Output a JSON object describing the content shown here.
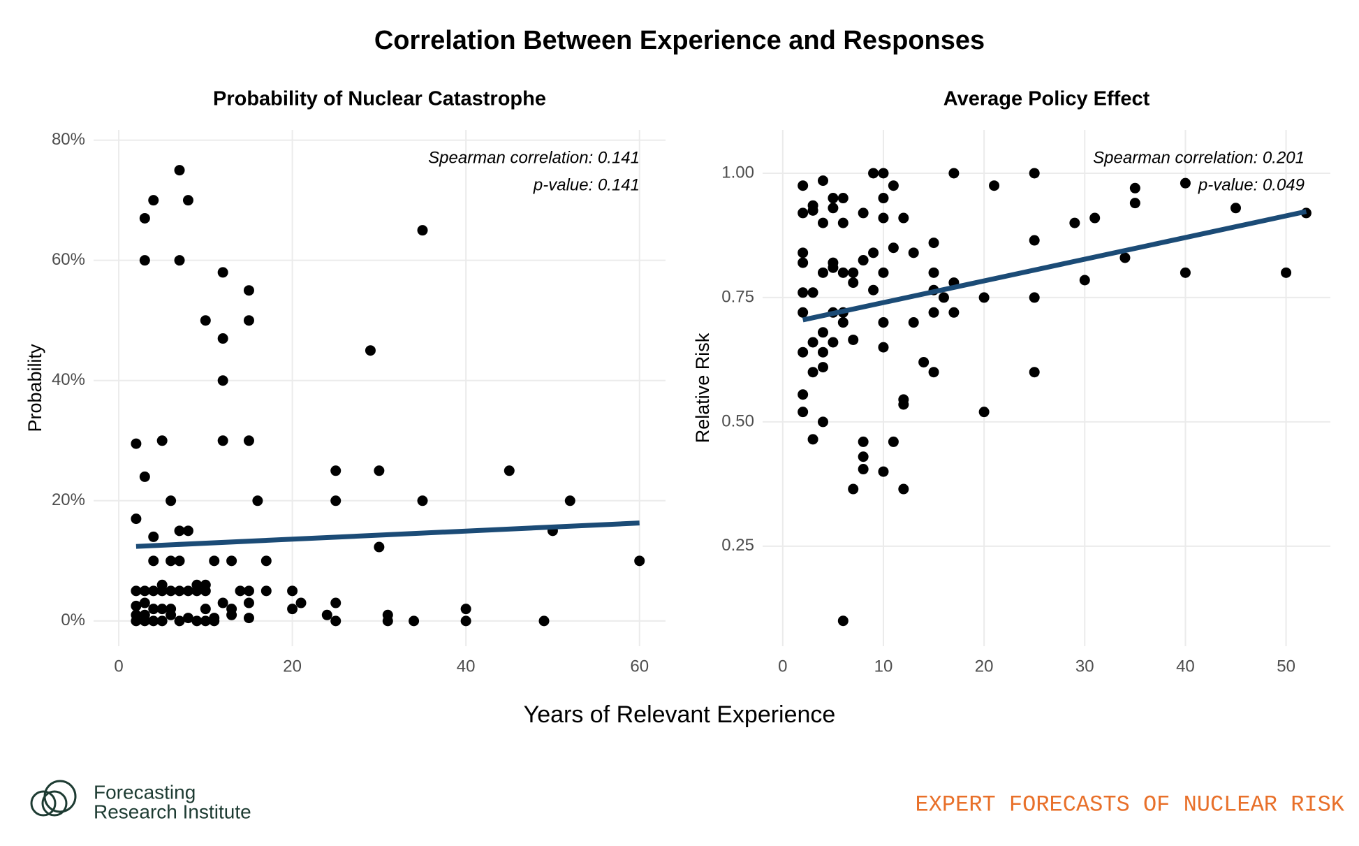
{
  "title": "Correlation Between Experience and Responses",
  "x_label": "Years of Relevant Experience",
  "logo_text": [
    "Forecasting",
    "Research Institute"
  ],
  "footer": "EXPERT FORECASTS OF NUCLEAR RISK",
  "chart_data": [
    {
      "type": "scatter",
      "title": "Probability of Nuclear Catastrophe",
      "y_label": "Probability",
      "color": "#000000",
      "grid": true,
      "xlim": [
        -2.9,
        63
      ],
      "ylim": [
        -4.2,
        81.7
      ],
      "xticks": [
        0,
        20,
        40,
        60
      ],
      "yticks": [
        {
          "value": 0,
          "label": "0%"
        },
        {
          "value": 20,
          "label": "20%"
        },
        {
          "value": 40,
          "label": "40%"
        },
        {
          "value": 60,
          "label": "60%"
        },
        {
          "value": 80,
          "label": "80%"
        }
      ],
      "annotations": [
        "Spearman correlation: 0.141",
        "p-value: 0.141"
      ],
      "trend_line": {
        "color": "#1b4b76",
        "x": [
          2,
          60
        ],
        "y": [
          12.4,
          16.3
        ]
      },
      "x": [
        2,
        2,
        2,
        2,
        2,
        2,
        3,
        3,
        3,
        3,
        3,
        3,
        3,
        4,
        4,
        4,
        4,
        4,
        4,
        5,
        5,
        5,
        5,
        5,
        6,
        6,
        6,
        6,
        6,
        7,
        7,
        7,
        7,
        7,
        7,
        8,
        8,
        8,
        8,
        9,
        9,
        9,
        10,
        10,
        10,
        10,
        10,
        11,
        11,
        11,
        12,
        12,
        12,
        12,
        12,
        13,
        13,
        13,
        14,
        15,
        15,
        15,
        15,
        15,
        15,
        16,
        17,
        17,
        20,
        20,
        21,
        24,
        25,
        25,
        25,
        25,
        29,
        30,
        30,
        31,
        31,
        34,
        35,
        35,
        40,
        40,
        45,
        49,
        50,
        52,
        60
      ],
      "y": [
        29.5,
        17,
        5,
        2.5,
        1,
        0,
        67,
        60,
        24,
        5,
        3,
        1,
        0,
        70,
        14,
        10,
        5,
        2,
        0,
        30,
        6,
        5,
        2,
        0,
        20,
        10,
        5,
        2,
        1,
        75,
        60,
        15,
        10,
        5,
        0,
        70,
        15,
        5,
        0.5,
        6,
        5,
        0,
        50,
        6,
        5,
        2,
        0,
        10,
        0.5,
        0,
        58,
        47,
        40,
        30,
        3,
        10,
        2,
        1,
        5,
        55,
        50,
        30,
        5,
        3,
        0.5,
        20,
        10,
        5,
        5,
        2,
        3,
        1,
        25,
        20,
        3,
        0,
        45,
        25,
        12.3,
        1,
        0,
        0,
        65,
        20,
        2,
        0,
        25,
        0,
        15,
        20,
        10
      ]
    },
    {
      "type": "scatter",
      "title": "Average Policy Effect",
      "y_label": "Relative Risk",
      "color": "#000000",
      "grid": true,
      "xlim": [
        -2,
        54.4
      ],
      "ylim": [
        0.049,
        1.087
      ],
      "xticks": [
        0,
        10,
        20,
        30,
        40,
        50
      ],
      "yticks": [
        {
          "value": 0.25,
          "label": "0.25"
        },
        {
          "value": 0.5,
          "label": "0.50"
        },
        {
          "value": 0.75,
          "label": "0.75"
        },
        {
          "value": 1.0,
          "label": "1.00"
        }
      ],
      "annotations": [
        "Spearman correlation: 0.201",
        "p-value: 0.049"
      ],
      "trend_line": {
        "color": "#1b4b76",
        "x": [
          2,
          52
        ],
        "y": [
          0.705,
          0.923
        ]
      },
      "x": [
        2,
        2,
        2,
        2,
        2,
        2,
        2,
        2,
        2,
        3,
        3,
        3,
        3,
        3,
        3,
        4,
        4,
        4,
        4,
        4,
        4,
        4,
        5,
        5,
        5,
        5,
        5,
        5,
        6,
        6,
        6,
        6,
        6,
        6,
        7,
        7,
        7,
        7,
        8,
        8,
        8,
        8,
        8,
        9,
        9,
        9,
        10,
        10,
        10,
        10,
        10,
        10,
        10,
        11,
        11,
        11,
        12,
        12,
        12,
        12,
        13,
        13,
        14,
        15,
        15,
        15,
        15,
        15,
        16,
        17,
        17,
        17,
        20,
        20,
        21,
        25,
        25,
        25,
        25,
        29,
        30,
        31,
        34,
        35,
        35,
        40,
        40,
        45,
        50,
        52
      ],
      "y": [
        0.975,
        0.92,
        0.84,
        0.82,
        0.76,
        0.72,
        0.64,
        0.555,
        0.52,
        0.935,
        0.925,
        0.76,
        0.66,
        0.6,
        0.465,
        0.985,
        0.9,
        0.8,
        0.68,
        0.64,
        0.61,
        0.5,
        0.95,
        0.93,
        0.82,
        0.81,
        0.72,
        0.66,
        0.95,
        0.9,
        0.8,
        0.72,
        0.7,
        0.1,
        0.8,
        0.78,
        0.665,
        0.365,
        0.92,
        0.825,
        0.46,
        0.43,
        0.405,
        1.0,
        0.84,
        0.765,
        1.0,
        0.95,
        0.91,
        0.8,
        0.7,
        0.65,
        0.4,
        0.975,
        0.85,
        0.46,
        0.91,
        0.545,
        0.535,
        0.365,
        0.84,
        0.7,
        0.62,
        0.86,
        0.8,
        0.765,
        0.72,
        0.6,
        0.75,
        1.0,
        0.78,
        0.72,
        0.75,
        0.52,
        0.975,
        1.0,
        0.865,
        0.75,
        0.6,
        0.9,
        0.785,
        0.91,
        0.83,
        0.97,
        0.94,
        0.98,
        0.8,
        0.93,
        0.8,
        0.92
      ]
    }
  ]
}
